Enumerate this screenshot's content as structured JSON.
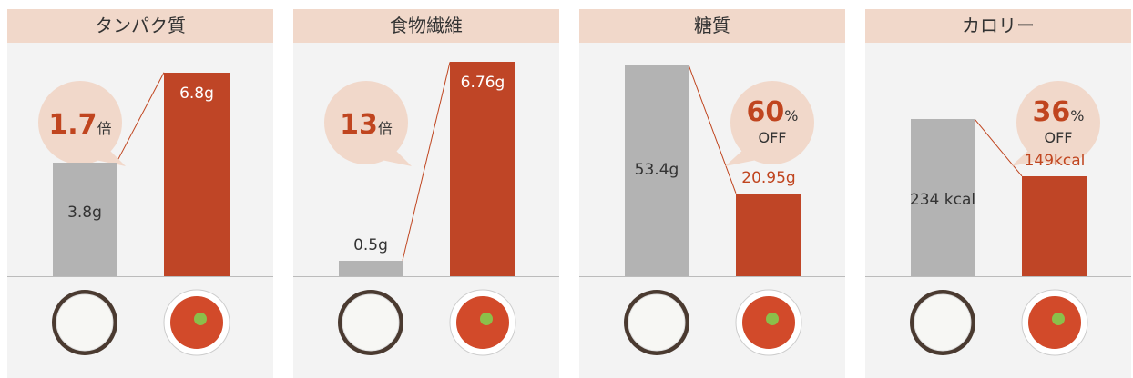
{
  "chart_data": [
    {
      "type": "bar",
      "title": "タンパク質",
      "categories": [
        null,
        null
      ],
      "values": [
        3.8,
        6.8
      ],
      "value_labels": [
        "3.8g",
        "6.8g"
      ],
      "colors": [
        "#b3b3b3",
        "#bf4526"
      ],
      "ylim": [
        0,
        7.4
      ],
      "callout": {
        "value": 1.7,
        "unit": "倍"
      }
    },
    {
      "type": "bar",
      "title": "食物繊維",
      "categories": [
        null,
        null
      ],
      "values": [
        0.5,
        6.76
      ],
      "value_labels": [
        "0.5g",
        "6.76g"
      ],
      "colors": [
        "#b3b3b3",
        "#bf4526"
      ],
      "ylim": [
        0,
        7
      ],
      "callout": {
        "value": 13,
        "unit": "倍"
      }
    },
    {
      "type": "bar",
      "title": "糖質",
      "categories": [
        null,
        null
      ],
      "values": [
        53.4,
        20.95
      ],
      "value_labels": [
        "53.4g",
        "20.95g"
      ],
      "colors": [
        "#b3b3b3",
        "#bf4526"
      ],
      "ylim": [
        0,
        56
      ],
      "callout": {
        "value": 60,
        "unit": "%",
        "note": "OFF"
      }
    },
    {
      "type": "bar",
      "title": "カロリー",
      "categories": [
        null,
        null
      ],
      "values": [
        234,
        149
      ],
      "value_labels": [
        "234 kcal",
        "149kcal"
      ],
      "colors": [
        "#b3b3b3",
        "#bf4526"
      ],
      "ylim": [
        0,
        330
      ],
      "callout": {
        "value": 36,
        "unit": "%",
        "note": "OFF"
      }
    }
  ]
}
